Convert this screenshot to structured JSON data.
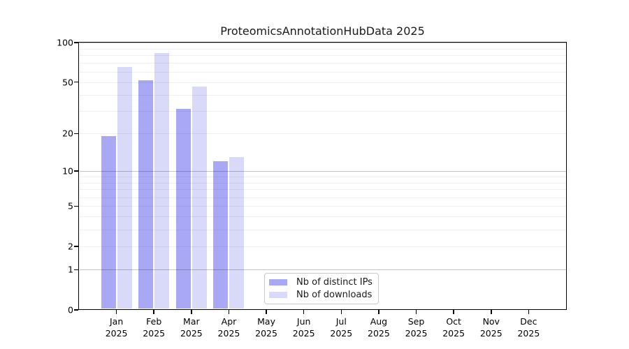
{
  "title": "ProteomicsAnnotationHubData 2025",
  "chart_data": {
    "type": "bar",
    "title": "ProteomicsAnnotationHubData 2025",
    "y_scale": "log1p",
    "ylim": [
      0,
      100
    ],
    "yticks": [
      0,
      1,
      2,
      5,
      10,
      20,
      50,
      100
    ],
    "gridlines": {
      "minor": [
        2,
        3,
        4,
        5,
        6,
        7,
        8,
        9,
        20,
        30,
        40,
        50,
        60,
        70,
        80,
        90
      ],
      "major": [
        1,
        10,
        100
      ]
    },
    "categories": [
      "Jan",
      "Feb",
      "Mar",
      "Apr",
      "May",
      "Jun",
      "Jul",
      "Aug",
      "Sep",
      "Oct",
      "Nov",
      "Dec"
    ],
    "x_sublabel": "2025",
    "series": [
      {
        "name": "Nb of distinct IPs",
        "color": "#a8a8f4",
        "values": [
          19,
          52,
          31,
          12,
          0,
          0,
          0,
          0,
          0,
          0,
          0,
          0
        ]
      },
      {
        "name": "Nb of downloads",
        "color": "#d9d9f9",
        "values": [
          65,
          83,
          46,
          13,
          0,
          0,
          0,
          0,
          0,
          0,
          0,
          0
        ]
      }
    ],
    "legend": {
      "position": "bottom-center",
      "entries": [
        "Nb of distinct IPs",
        "Nb of downloads"
      ]
    }
  }
}
